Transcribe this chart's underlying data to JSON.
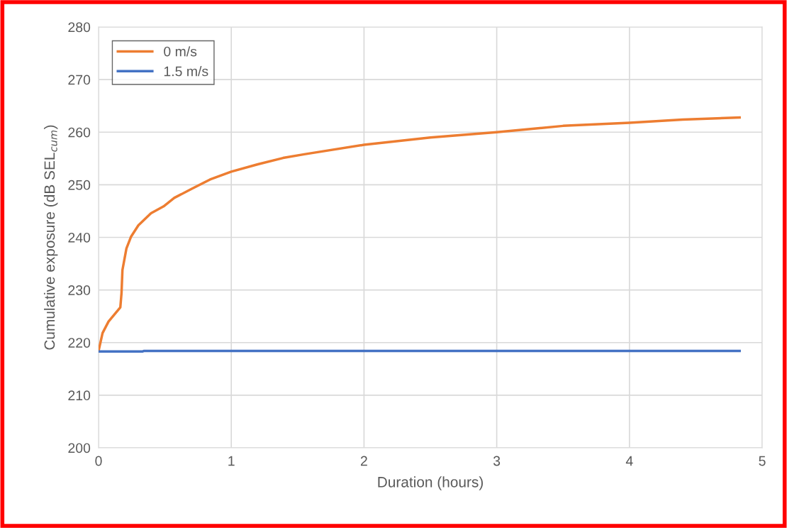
{
  "chart_data": {
    "type": "line",
    "xlabel": "Duration (hours)",
    "ylabel": "Cumulative exposure (dB SEL$_{cum}$)",
    "xlim": [
      0,
      5
    ],
    "xticks": [
      0,
      1,
      2,
      3,
      4,
      5
    ],
    "ylim": [
      200,
      280
    ],
    "yticks": [
      200,
      210,
      220,
      230,
      240,
      250,
      260,
      270,
      280
    ],
    "grid": true,
    "legend": "top left",
    "marker": "none",
    "line_style": "solid",
    "series": [
      {
        "name": "0 m/s",
        "color": "#ed7d31",
        "x": [
          0,
          0.03,
          0.075,
          0.164,
          0.173,
          0.18,
          0.21,
          0.244,
          0.3,
          0.395,
          0.49,
          0.57,
          0.7,
          0.84,
          1.0,
          1.2,
          1.39,
          1.55,
          2,
          2.5,
          3,
          3.5,
          4,
          4.4,
          4.83
        ],
        "values": [
          218.4,
          221.8,
          224.0,
          226.7,
          229.4,
          233.8,
          237.9,
          240.1,
          242.3,
          244.6,
          245.9,
          247.5,
          249.2,
          251.0,
          252.5,
          253.9,
          255.1,
          255.8,
          257.6,
          259.0,
          260.0,
          261.2,
          261.8,
          262.4,
          262.8
        ]
      },
      {
        "name": "1.5 m/s",
        "color": "#4472c4",
        "x": [
          0,
          0.33,
          0.34,
          4.83
        ],
        "values": [
          218.3,
          218.3,
          218.4,
          218.4
        ]
      }
    ]
  }
}
